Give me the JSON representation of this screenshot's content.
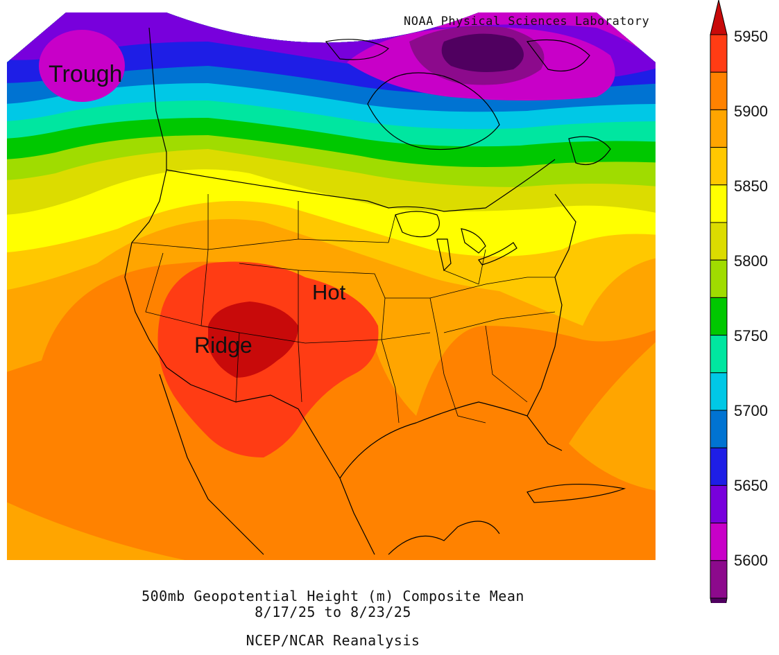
{
  "map": {
    "credit": "NOAA Physical Sciences Laboratory",
    "annotations": {
      "trough": "Trough",
      "hot": "Hot",
      "ridge": "Ridge"
    },
    "features": {
      "country_boundaries": [
        "United States",
        "Canada",
        "Mexico"
      ],
      "state_boundaries": true,
      "coastlines": true,
      "lakes": true
    }
  },
  "caption": {
    "title": "500mb Geopotential Height (m) Composite Mean",
    "dates": "8/17/25  to 8/23/25",
    "source": "NCEP/NCAR Reanalysis"
  },
  "colorbar": {
    "ticks": [
      "5950",
      "5900",
      "5850",
      "5800",
      "5750",
      "5700",
      "5650",
      "5600"
    ],
    "bins_top_to_bottom": [
      {
        "range": "> 5975",
        "color": "#c80a0a"
      },
      {
        "range": "5950-5975",
        "color": "#ff3c14"
      },
      {
        "range": "5925-5950",
        "color": "#ff8200"
      },
      {
        "range": "5900-5925",
        "color": "#ffa500"
      },
      {
        "range": "5875-5900",
        "color": "#ffc800"
      },
      {
        "range": "5850-5875",
        "color": "#ffff00"
      },
      {
        "range": "5825-5850",
        "color": "#dcdc00"
      },
      {
        "range": "5800-5825",
        "color": "#a0dc00"
      },
      {
        "range": "5775-5800",
        "color": "#00c800"
      },
      {
        "range": "5750-5775",
        "color": "#00e6a0"
      },
      {
        "range": "5725-5750",
        "color": "#00c8e6"
      },
      {
        "range": "5700-5725",
        "color": "#0073d2"
      },
      {
        "range": "5675-5700",
        "color": "#1e1ee6"
      },
      {
        "range": "5650-5675",
        "color": "#7800dc"
      },
      {
        "range": "5625-5650",
        "color": "#c800c8"
      },
      {
        "range": "5600-5625",
        "color": "#8c0a8c"
      },
      {
        "range": "< 5600",
        "color": "#500060"
      }
    ]
  }
}
